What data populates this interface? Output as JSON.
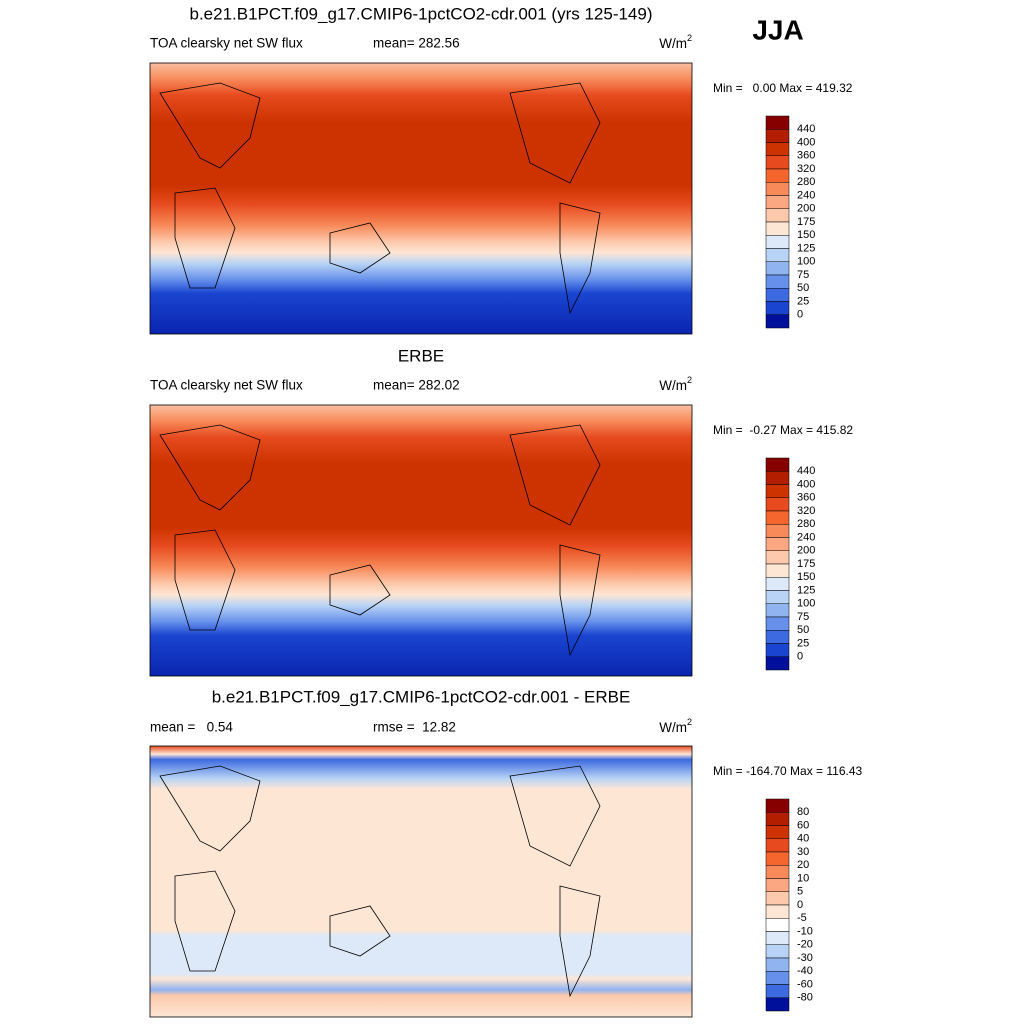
{
  "season": "JJA",
  "panels": [
    {
      "title": "b.e21.B1PCT.f09_g17.CMIP6-1pctCO2-cdr.001 (yrs 125-149)",
      "left": "TOA clearsky net SW flux",
      "center": "mean= 282.56",
      "units": "W/m",
      "units_power": "2",
      "minmax": "Min =   0.00 Max = 419.32",
      "colorbar": {
        "labels": [
          440,
          400,
          360,
          320,
          280,
          240,
          200,
          175,
          150,
          125,
          100,
          75,
          50,
          25,
          0
        ],
        "colors": [
          "#870000",
          "#b31d00",
          "#cc3300",
          "#e64a1e",
          "#f5652e",
          "#f88a5a",
          "#fba882",
          "#fcc9ac",
          "#fee6d5",
          "#dde9f8",
          "#b8d3f5",
          "#8fb4f0",
          "#6690ea",
          "#3d6ae0",
          "#1a45d0",
          "#00109a"
        ]
      }
    },
    {
      "title": "ERBE",
      "left": "TOA clearsky net SW flux",
      "center": "mean= 282.02",
      "units": "W/m",
      "units_power": "2",
      "minmax": "Min =  -0.27 Max = 415.82",
      "colorbar": {
        "labels": [
          440,
          400,
          360,
          320,
          280,
          240,
          200,
          175,
          150,
          125,
          100,
          75,
          50,
          25,
          0
        ],
        "colors": [
          "#870000",
          "#b31d00",
          "#cc3300",
          "#e64a1e",
          "#f5652e",
          "#f88a5a",
          "#fba882",
          "#fcc9ac",
          "#fee6d5",
          "#dde9f8",
          "#b8d3f5",
          "#8fb4f0",
          "#6690ea",
          "#3d6ae0",
          "#1a45d0",
          "#00109a"
        ]
      }
    },
    {
      "title": "b.e21.B1PCT.f09_g17.CMIP6-1pctCO2-cdr.001 - ERBE",
      "left": "mean =   0.54",
      "center": "rmse =  12.82",
      "units": "W/m",
      "units_power": "2",
      "minmax": "Min = -164.70 Max = 116.43",
      "colorbar": {
        "labels": [
          80,
          60,
          40,
          30,
          20,
          10,
          5,
          0,
          -5,
          -10,
          -20,
          -30,
          -40,
          -60,
          -80
        ],
        "colors": [
          "#870000",
          "#b31d00",
          "#cc3300",
          "#e64a1e",
          "#f5652e",
          "#f88a5a",
          "#fba882",
          "#fcc9ac",
          "#fee6d5",
          "#ffffff",
          "#dde9f8",
          "#b8d3f5",
          "#8fb4f0",
          "#6690ea",
          "#3d6ae0",
          "#00109a"
        ]
      }
    }
  ]
}
